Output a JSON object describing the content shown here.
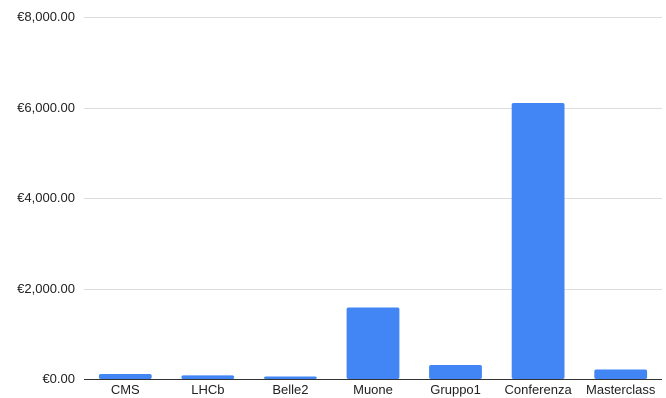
{
  "chart_data": {
    "type": "bar",
    "title": "",
    "xlabel": "",
    "ylabel": "",
    "categories": [
      "CMS",
      "LHCb",
      "Belle2",
      "Muone",
      "Gruppo1",
      "Conferenza",
      "Masterclass"
    ],
    "values": [
      110,
      80,
      55,
      1580,
      310,
      6100,
      210
    ],
    "ylim": [
      0,
      8000
    ],
    "yticks": [
      {
        "value": 0,
        "label": "€0.00"
      },
      {
        "value": 2000,
        "label": "€2,000.00"
      },
      {
        "value": 4000,
        "label": "€4,000.00"
      },
      {
        "value": 6000,
        "label": "€6,000.00"
      },
      {
        "value": 8000,
        "label": "€8,000.00"
      }
    ],
    "grid": true,
    "legend": "none",
    "colors": {
      "bar": "#4285f4",
      "grid": "#dddddd",
      "axis": "#333333"
    }
  }
}
